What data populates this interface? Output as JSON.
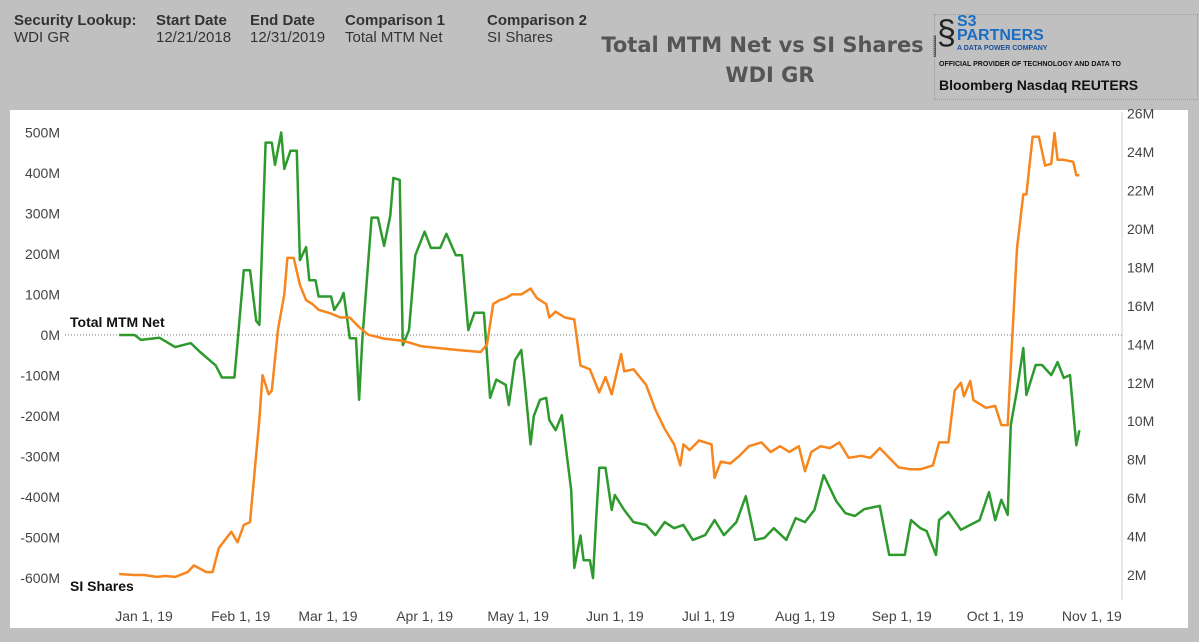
{
  "filters": {
    "security_label": "Security Lookup:",
    "security_value": "WDI GR",
    "start_label": "Start Date",
    "start_value": "12/21/2018",
    "end_label": "End Date",
    "end_value": "12/31/2019",
    "comp1_label": "Comparison 1",
    "comp1_value": "Total MTM Net",
    "comp2_label": "Comparison 2",
    "comp2_value": "SI Shares"
  },
  "title_line1": "Total MTM Net vs SI Shares |",
  "title_line2": "WDI GR",
  "logo": {
    "s3": "S3",
    "partners": "PARTNERS",
    "tagline": "A DATA POWER COMPANY",
    "official": "OFFICIAL PROVIDER OF TECHNOLOGY AND DATA TO",
    "brands": "Bloomberg  Nasdaq  REUTERS"
  },
  "chart_data": {
    "type": "line",
    "title": "Total MTM Net vs SI Shares | WDI GR",
    "x_unit": "days since Jan 1, 2019",
    "x_ticks": [
      {
        "label": "Jan 1, 19",
        "day": 0
      },
      {
        "label": "Feb 1, 19",
        "day": 31
      },
      {
        "label": "Mar 1, 19",
        "day": 59
      },
      {
        "label": "Apr 1, 19",
        "day": 90
      },
      {
        "label": "May 1, 19",
        "day": 120
      },
      {
        "label": "Jun 1, 19",
        "day": 151
      },
      {
        "label": "Jul 1, 19",
        "day": 181
      },
      {
        "label": "Aug 1, 19",
        "day": 212
      },
      {
        "label": "Sep 1, 19",
        "day": 243
      },
      {
        "label": "Oct 1, 19",
        "day": 273
      },
      {
        "label": "Nov 1, 19",
        "day": 304
      }
    ],
    "left_axis": {
      "label": "Total MTM Net",
      "unit": "M",
      "ylim": [
        -650,
        550
      ],
      "ticks": [
        {
          "v": 500,
          "label": "500M"
        },
        {
          "v": 400,
          "label": "400M"
        },
        {
          "v": 300,
          "label": "300M"
        },
        {
          "v": 200,
          "label": "200M"
        },
        {
          "v": 100,
          "label": "100M"
        },
        {
          "v": 0,
          "label": "0M"
        },
        {
          "v": -100,
          "label": "-100M"
        },
        {
          "v": -200,
          "label": "-200M"
        },
        {
          "v": -300,
          "label": "-300M"
        },
        {
          "v": -400,
          "label": "-400M"
        },
        {
          "v": -500,
          "label": "-500M"
        },
        {
          "v": -600,
          "label": "-600M"
        }
      ]
    },
    "right_axis": {
      "label": "SI Shares",
      "unit": "M",
      "ylim": [
        1,
        27
      ],
      "ticks": [
        {
          "v": 26,
          "label": "26M"
        },
        {
          "v": 24,
          "label": "24M"
        },
        {
          "v": 22,
          "label": "22M"
        },
        {
          "v": 20,
          "label": "20M"
        },
        {
          "v": 18,
          "label": "18M"
        },
        {
          "v": 16,
          "label": "16M"
        },
        {
          "v": 14,
          "label": "14M"
        },
        {
          "v": 12,
          "label": "12M"
        },
        {
          "v": 10,
          "label": "10M"
        },
        {
          "v": 8,
          "label": "8M"
        },
        {
          "v": 6,
          "label": "6M"
        },
        {
          "v": 4,
          "label": "4M"
        },
        {
          "v": 2,
          "label": "2M"
        }
      ]
    },
    "series": [
      {
        "name": "Total MTM Net",
        "axis": "left",
        "color": "#2e9a2e",
        "points": [
          [
            -8,
            0
          ],
          [
            -3,
            0
          ],
          [
            -1,
            -12
          ],
          [
            5,
            -7
          ],
          [
            10,
            -30
          ],
          [
            15,
            -20
          ],
          [
            18,
            -42
          ],
          [
            23,
            -75
          ],
          [
            25,
            -105
          ],
          [
            29,
            -105
          ],
          [
            30,
            -20
          ],
          [
            32,
            160
          ],
          [
            34,
            160
          ],
          [
            36,
            35
          ],
          [
            37,
            25
          ],
          [
            39,
            475
          ],
          [
            41,
            475
          ],
          [
            42,
            420
          ],
          [
            44,
            500
          ],
          [
            45,
            410
          ],
          [
            47,
            455
          ],
          [
            49,
            455
          ],
          [
            50,
            185
          ],
          [
            52,
            217
          ],
          [
            53,
            135
          ],
          [
            55,
            135
          ],
          [
            56,
            95
          ],
          [
            60,
            95
          ],
          [
            61,
            62
          ],
          [
            63,
            85
          ],
          [
            64,
            104
          ],
          [
            66,
            -8
          ],
          [
            68,
            -8
          ],
          [
            69,
            -160
          ],
          [
            70,
            -12
          ],
          [
            73,
            290
          ],
          [
            75,
            290
          ],
          [
            77,
            220
          ],
          [
            79,
            295
          ],
          [
            80,
            388
          ],
          [
            82,
            383
          ],
          [
            83,
            -25
          ],
          [
            85,
            12
          ],
          [
            87,
            197
          ],
          [
            90,
            255
          ],
          [
            92,
            215
          ],
          [
            95,
            215
          ],
          [
            97,
            250
          ],
          [
            100,
            197
          ],
          [
            102,
            197
          ],
          [
            104,
            12
          ],
          [
            106,
            55
          ],
          [
            109,
            55
          ],
          [
            111,
            -155
          ],
          [
            113,
            -110
          ],
          [
            116,
            -123
          ],
          [
            117,
            -173
          ],
          [
            119,
            -62
          ],
          [
            121,
            -37
          ],
          [
            122,
            -110
          ],
          [
            124,
            -270
          ],
          [
            125,
            -200
          ],
          [
            127,
            -160
          ],
          [
            129,
            -155
          ],
          [
            130,
            -210
          ],
          [
            132,
            -235
          ],
          [
            134,
            -198
          ],
          [
            137,
            -383
          ],
          [
            138,
            -575
          ],
          [
            140,
            -495
          ],
          [
            141,
            -556
          ],
          [
            143,
            -556
          ],
          [
            144,
            -600
          ],
          [
            145,
            -457
          ],
          [
            146,
            -328
          ],
          [
            148,
            -328
          ],
          [
            150,
            -432
          ],
          [
            151,
            -395
          ],
          [
            154,
            -432
          ],
          [
            157,
            -462
          ],
          [
            161,
            -469
          ],
          [
            164,
            -494
          ],
          [
            167,
            -462
          ],
          [
            170,
            -477
          ],
          [
            173,
            -469
          ],
          [
            176,
            -506
          ],
          [
            180,
            -494
          ],
          [
            183,
            -457
          ],
          [
            186,
            -494
          ],
          [
            190,
            -462
          ],
          [
            193,
            -398
          ],
          [
            196,
            -506
          ],
          [
            199,
            -501
          ],
          [
            202,
            -477
          ],
          [
            206,
            -506
          ],
          [
            209,
            -452
          ],
          [
            212,
            -462
          ],
          [
            215,
            -432
          ],
          [
            218,
            -346
          ],
          [
            222,
            -410
          ],
          [
            225,
            -440
          ],
          [
            228,
            -447
          ],
          [
            231,
            -430
          ],
          [
            236,
            -422
          ],
          [
            239,
            -543
          ],
          [
            244,
            -543
          ],
          [
            246,
            -457
          ],
          [
            249,
            -477
          ],
          [
            251,
            -484
          ],
          [
            254,
            -543
          ],
          [
            255,
            -457
          ],
          [
            258,
            -437
          ],
          [
            262,
            -481
          ],
          [
            265,
            -469
          ],
          [
            268,
            -457
          ],
          [
            271,
            -388
          ],
          [
            273,
            -457
          ],
          [
            275,
            -407
          ],
          [
            277,
            -444
          ],
          [
            278,
            -222
          ],
          [
            280,
            -136
          ],
          [
            282,
            -32
          ],
          [
            283,
            -148
          ],
          [
            286,
            -74
          ],
          [
            288,
            -74
          ],
          [
            291,
            -99
          ],
          [
            293,
            -67
          ],
          [
            295,
            -106
          ],
          [
            297,
            -99
          ],
          [
            299,
            -272
          ],
          [
            300,
            -235
          ]
        ]
      },
      {
        "name": "SI Shares",
        "axis": "right",
        "color": "#f7861e",
        "points": [
          [
            -8,
            2.05
          ],
          [
            -3,
            2.0
          ],
          [
            0,
            2.0
          ],
          [
            4,
            1.9
          ],
          [
            7,
            1.95
          ],
          [
            10,
            1.9
          ],
          [
            14,
            2.15
          ],
          [
            16,
            2.5
          ],
          [
            20,
            2.15
          ],
          [
            22,
            2.15
          ],
          [
            24,
            3.4
          ],
          [
            28,
            4.25
          ],
          [
            30,
            3.7
          ],
          [
            32,
            4.6
          ],
          [
            34,
            4.75
          ],
          [
            37,
            10.1
          ],
          [
            38,
            12.4
          ],
          [
            40,
            11.4
          ],
          [
            41,
            11.6
          ],
          [
            43,
            14.8
          ],
          [
            45,
            16.6
          ],
          [
            46,
            18.5
          ],
          [
            48,
            18.5
          ],
          [
            50,
            17.1
          ],
          [
            52,
            16.3
          ],
          [
            54,
            16.1
          ],
          [
            56,
            15.8
          ],
          [
            60,
            15.6
          ],
          [
            63,
            15.4
          ],
          [
            66,
            15.4
          ],
          [
            69,
            14.9
          ],
          [
            72,
            14.5
          ],
          [
            77,
            14.3
          ],
          [
            82,
            14.2
          ],
          [
            85,
            14.1
          ],
          [
            89,
            13.9
          ],
          [
            95,
            13.8
          ],
          [
            101,
            13.7
          ],
          [
            108,
            13.6
          ],
          [
            110,
            14.0
          ],
          [
            112,
            16.1
          ],
          [
            114,
            16.3
          ],
          [
            116,
            16.4
          ],
          [
            118,
            16.6
          ],
          [
            121,
            16.6
          ],
          [
            124,
            16.9
          ],
          [
            126,
            16.4
          ],
          [
            129,
            16.1
          ],
          [
            130,
            15.4
          ],
          [
            132,
            15.7
          ],
          [
            135,
            15.4
          ],
          [
            138,
            15.3
          ],
          [
            140,
            12.9
          ],
          [
            143,
            12.7
          ],
          [
            146,
            11.5
          ],
          [
            148,
            12.3
          ],
          [
            150,
            11.4
          ],
          [
            153,
            13.5
          ],
          [
            154,
            12.6
          ],
          [
            157,
            12.7
          ],
          [
            161,
            11.9
          ],
          [
            164,
            10.6
          ],
          [
            167,
            9.6
          ],
          [
            170,
            8.8
          ],
          [
            172,
            7.7
          ],
          [
            173,
            8.8
          ],
          [
            175,
            8.5
          ],
          [
            178,
            9.0
          ],
          [
            182,
            8.8
          ],
          [
            183,
            7.05
          ],
          [
            185,
            7.9
          ],
          [
            188,
            7.8
          ],
          [
            191,
            8.2
          ],
          [
            194,
            8.7
          ],
          [
            198,
            8.9
          ],
          [
            201,
            8.4
          ],
          [
            204,
            8.7
          ],
          [
            207,
            8.4
          ],
          [
            210,
            8.7
          ],
          [
            212,
            7.4
          ],
          [
            214,
            8.4
          ],
          [
            217,
            8.7
          ],
          [
            220,
            8.6
          ],
          [
            223,
            8.9
          ],
          [
            226,
            8.1
          ],
          [
            230,
            8.2
          ],
          [
            233,
            8.1
          ],
          [
            236,
            8.6
          ],
          [
            239,
            8.1
          ],
          [
            242,
            7.6
          ],
          [
            246,
            7.5
          ],
          [
            249,
            7.5
          ],
          [
            253,
            7.7
          ],
          [
            255,
            8.9
          ],
          [
            258,
            8.9
          ],
          [
            260,
            11.6
          ],
          [
            262,
            12.0
          ],
          [
            263,
            11.3
          ],
          [
            265,
            12.1
          ],
          [
            266,
            11.1
          ],
          [
            270,
            10.7
          ],
          [
            273,
            10.8
          ],
          [
            275,
            9.8
          ],
          [
            277,
            9.8
          ],
          [
            278,
            12.9
          ],
          [
            280,
            19.0
          ],
          [
            282,
            21.8
          ],
          [
            283,
            21.8
          ],
          [
            285,
            24.8
          ],
          [
            287,
            24.8
          ],
          [
            289,
            23.3
          ],
          [
            291,
            23.4
          ],
          [
            292,
            25.0
          ],
          [
            293,
            23.6
          ],
          [
            295,
            23.6
          ],
          [
            298,
            23.5
          ],
          [
            299,
            22.8
          ],
          [
            300,
            22.8
          ]
        ]
      }
    ]
  }
}
